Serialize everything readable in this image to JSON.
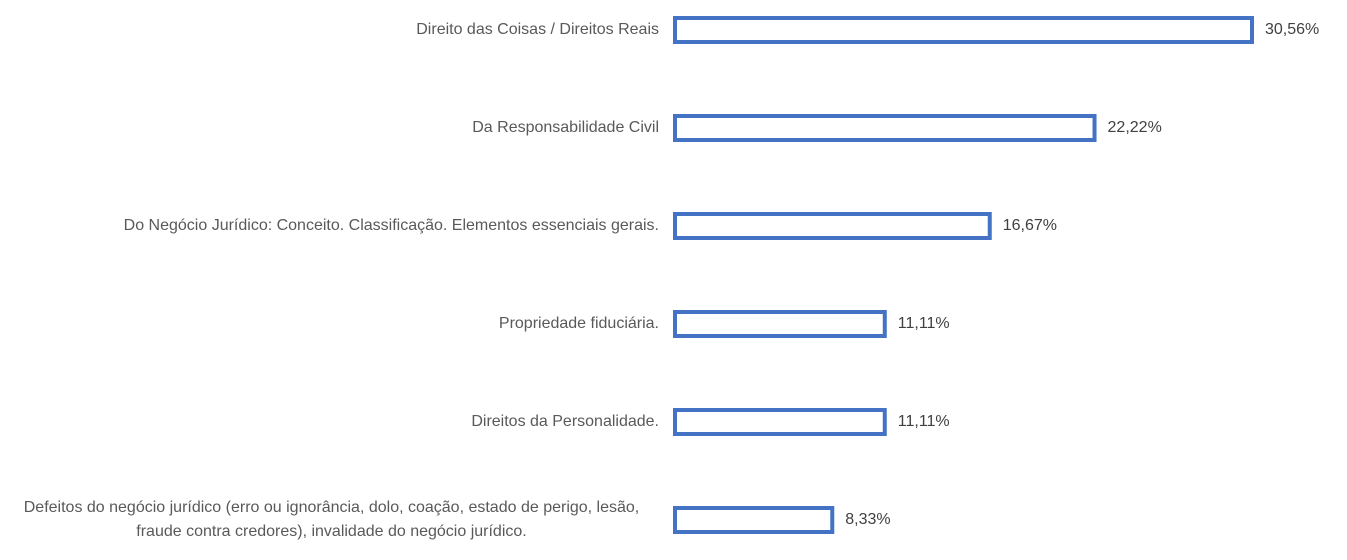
{
  "chart_data": {
    "type": "barh",
    "categories": [
      "Direito das Coisas / Direitos Reais",
      "Da Responsabilidade Civil",
      "Do Negócio Jurídico: Conceito. Classificação. Elementos essenciais gerais.",
      "Propriedade fiduciária.",
      "Direitos da Personalidade.",
      "Defeitos do negócio jurídico (erro ou ignorância, dolo, coação, estado de perigo, lesão, fraude contra credores), invalidade do negócio jurídico."
    ],
    "values": [
      30.56,
      22.22,
      16.67,
      11.11,
      11.11,
      8.33
    ],
    "value_labels": [
      "30,56%",
      "22,22%",
      "16,67%",
      "11,11%",
      "11,11%",
      "8,33%"
    ],
    "color": "#4472c4"
  }
}
